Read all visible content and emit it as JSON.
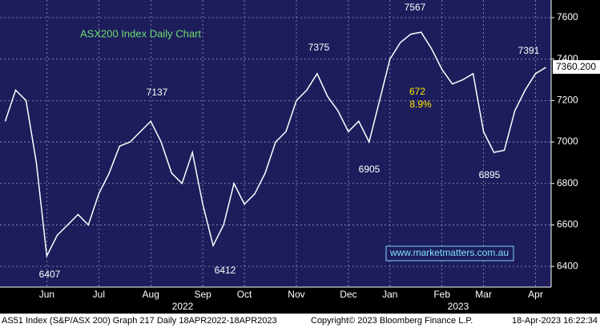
{
  "chart_data": {
    "type": "line",
    "title": "ASX200 Index Daily Chart",
    "categories": [
      null,
      null,
      null,
      null,
      "Jun",
      null,
      null,
      null,
      null,
      "Jul",
      null,
      null,
      null,
      null,
      "Aug",
      null,
      null,
      null,
      null,
      "Sep",
      null,
      null,
      null,
      "Oct",
      null,
      null,
      null,
      null,
      "Nov",
      null,
      null,
      null,
      null,
      "Dec",
      null,
      null,
      null,
      "Jan",
      null,
      null,
      null,
      null,
      "Feb",
      null,
      null,
      null,
      "Mar",
      null,
      null,
      null,
      null,
      "Apr",
      null
    ],
    "series": [
      {
        "name": "AS51 Index",
        "color": "#ffffff",
        "values": [
          7100,
          7250,
          7200,
          6900,
          6450,
          6550,
          6600,
          6650,
          6600,
          6750,
          6850,
          6980,
          7000,
          7050,
          7100,
          7000,
          6850,
          6800,
          6950,
          6700,
          6500,
          6600,
          6800,
          6700,
          6750,
          6850,
          7000,
          7050,
          7200,
          7250,
          7330,
          7220,
          7150,
          7050,
          7100,
          7000,
          7200,
          7400,
          7480,
          7520,
          7530,
          7450,
          7350,
          7280,
          7300,
          7330,
          7050,
          6950,
          6960,
          7150,
          7250,
          7330,
          7360
        ]
      }
    ],
    "ylim": [
      6300,
      7685
    ],
    "yticks": [
      6400,
      6600,
      6800,
      7000,
      7200,
      7400,
      7600
    ],
    "grid": true,
    "annotations": [
      "7567",
      "7375",
      "7137",
      "7391",
      "6407",
      "6412",
      "6905",
      "6895",
      "672",
      "8.9%"
    ],
    "last_price_label": "7360.200",
    "years": [
      "2022",
      "2023"
    ],
    "watermark": "www.marketmatters.com.au",
    "footer": [
      "AS51 Index (S&P/ASX 200) Graph 217  Daily 18APR2022-18APR2023",
      "Copyright© 2023 Bloomberg Finance L.P.",
      "18-Apr-2023 16:22:34"
    ]
  }
}
